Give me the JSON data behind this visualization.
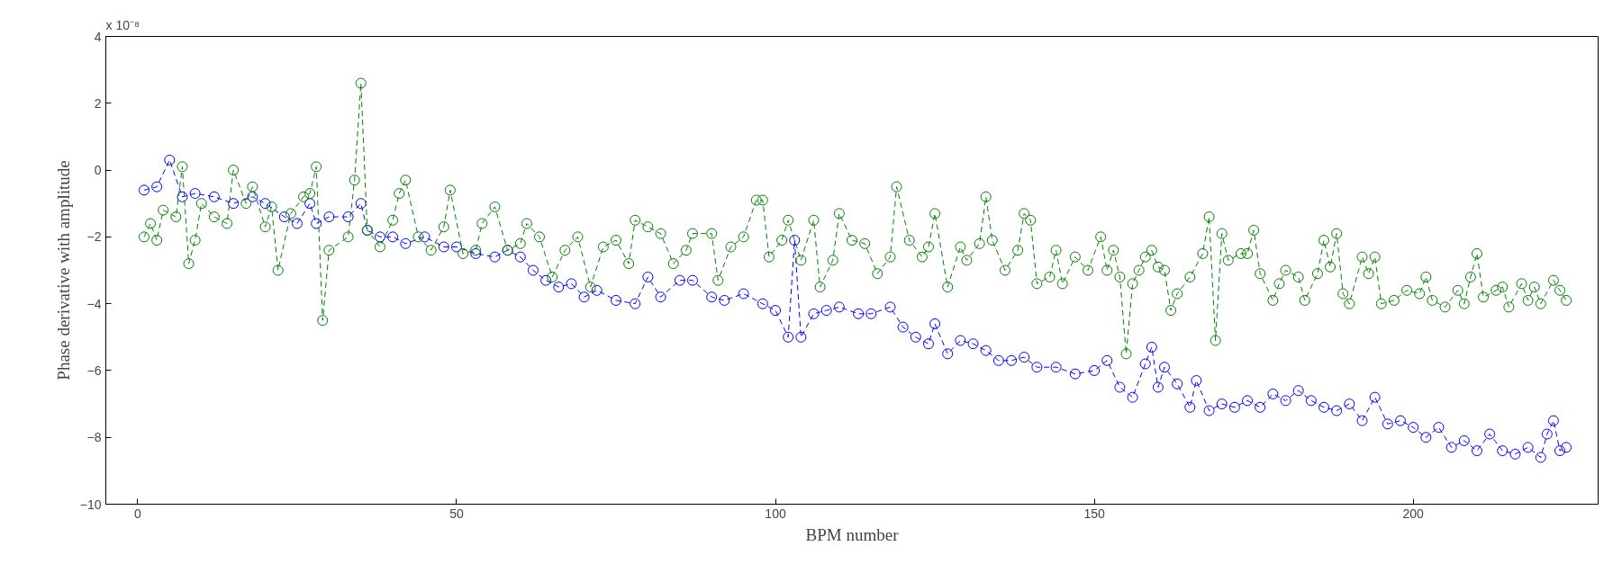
{
  "chart_data": {
    "type": "line",
    "xlabel": "BPM number",
    "ylabel": "Phase derivative with amplitude",
    "annotations": [
      "x 10⁻⁸"
    ],
    "xlim": [
      -5,
      229
    ],
    "xticks": [
      0,
      50,
      100,
      150,
      200
    ],
    "ylim": [
      -10,
      4
    ],
    "yticks": [
      -10,
      -8,
      -6,
      -4,
      -2,
      0,
      2,
      4
    ],
    "grid": false,
    "marker": "circle",
    "line_style": "dashed",
    "series": [
      {
        "color": "#0000ff",
        "x": [
          1,
          3,
          5,
          7,
          9,
          12,
          15,
          18,
          20,
          23,
          25,
          27,
          28,
          30,
          33,
          35,
          36,
          38,
          40,
          42,
          45,
          48,
          50,
          53,
          56,
          58,
          60,
          62,
          64,
          66,
          68,
          70,
          72,
          75,
          78,
          80,
          82,
          85,
          87,
          90,
          92,
          95,
          98,
          100,
          102,
          103,
          104,
          106,
          108,
          110,
          113,
          115,
          118,
          120,
          122,
          124,
          125,
          127,
          129,
          131,
          133,
          135,
          137,
          139,
          141,
          144,
          147,
          150,
          152,
          154,
          156,
          158,
          159,
          160,
          161,
          163,
          165,
          166,
          168,
          170,
          172,
          174,
          176,
          178,
          180,
          182,
          184,
          186,
          188,
          190,
          192,
          194,
          196,
          198,
          200,
          202,
          204,
          206,
          208,
          210,
          212,
          214,
          216,
          218,
          220,
          221,
          222,
          223,
          224
        ],
        "values": [
          -0.6,
          -0.5,
          0.3,
          -0.8,
          -0.7,
          -0.8,
          -1.0,
          -0.8,
          -1.0,
          -1.4,
          -1.6,
          -1.0,
          -1.6,
          -1.4,
          -1.4,
          -1.0,
          -1.8,
          -2.0,
          -2.0,
          -2.2,
          -2.0,
          -2.3,
          -2.3,
          -2.5,
          -2.6,
          -2.4,
          -2.6,
          -3.0,
          -3.3,
          -3.5,
          -3.4,
          -3.8,
          -3.6,
          -3.9,
          -4.0,
          -3.2,
          -3.8,
          -3.3,
          -3.3,
          -3.8,
          -3.9,
          -3.7,
          -4.0,
          -4.2,
          -5.0,
          -2.1,
          -5.0,
          -4.3,
          -4.2,
          -4.1,
          -4.3,
          -4.3,
          -4.1,
          -4.7,
          -5.0,
          -5.2,
          -4.6,
          -5.5,
          -5.1,
          -5.2,
          -5.4,
          -5.7,
          -5.7,
          -5.6,
          -5.9,
          -5.9,
          -6.1,
          -6.0,
          -5.7,
          -6.5,
          -6.8,
          -5.8,
          -5.3,
          -6.5,
          -5.9,
          -6.4,
          -7.1,
          -6.3,
          -7.2,
          -7.0,
          -7.1,
          -6.9,
          -7.1,
          -6.7,
          -6.9,
          -6.6,
          -6.9,
          -7.1,
          -7.2,
          -7.0,
          -7.5,
          -6.8,
          -7.6,
          -7.5,
          -7.7,
          -8.0,
          -7.7,
          -8.3,
          -8.1,
          -8.4,
          -7.9,
          -8.4,
          -8.5,
          -8.3,
          -8.6,
          -7.9,
          -7.5,
          -8.4,
          -8.3
        ]
      },
      {
        "color": "#008000",
        "x": [
          1,
          2,
          3,
          4,
          6,
          7,
          8,
          9,
          10,
          12,
          14,
          15,
          17,
          18,
          20,
          21,
          22,
          24,
          26,
          27,
          28,
          29,
          30,
          33,
          34,
          35,
          36,
          38,
          40,
          41,
          42,
          44,
          46,
          48,
          49,
          51,
          53,
          54,
          56,
          58,
          60,
          61,
          63,
          65,
          67,
          69,
          71,
          73,
          75,
          77,
          78,
          80,
          82,
          84,
          86,
          87,
          90,
          91,
          93,
          95,
          97,
          98,
          99,
          101,
          102,
          104,
          106,
          107,
          109,
          110,
          112,
          114,
          116,
          118,
          119,
          121,
          123,
          124,
          125,
          127,
          129,
          130,
          132,
          133,
          134,
          136,
          138,
          139,
          140,
          141,
          143,
          144,
          145,
          147,
          149,
          151,
          152,
          153,
          154,
          155,
          156,
          157,
          158,
          159,
          160,
          161,
          162,
          163,
          165,
          167,
          168,
          169,
          170,
          171,
          173,
          174,
          175,
          176,
          178,
          179,
          180,
          182,
          183,
          185,
          186,
          187,
          188,
          189,
          190,
          192,
          193,
          194,
          195,
          197,
          199,
          201,
          202,
          203,
          205,
          207,
          208,
          209,
          210,
          211,
          213,
          214,
          215,
          217,
          218,
          219,
          220,
          222,
          223,
          224
        ],
        "values": [
          -2.0,
          -1.6,
          -2.1,
          -1.2,
          -1.4,
          0.1,
          -2.8,
          -2.1,
          -1.0,
          -1.4,
          -1.6,
          0.0,
          -1.0,
          -0.5,
          -1.7,
          -1.1,
          -3.0,
          -1.3,
          -0.8,
          -0.7,
          0.1,
          -4.5,
          -2.4,
          -2.0,
          -0.3,
          2.6,
          -1.8,
          -2.3,
          -1.5,
          -0.7,
          -0.3,
          -2.0,
          -2.4,
          -1.7,
          -0.6,
          -2.5,
          -2.4,
          -1.6,
          -1.1,
          -2.4,
          -2.2,
          -1.6,
          -2.0,
          -3.2,
          -2.4,
          -2.0,
          -3.5,
          -2.3,
          -2.1,
          -2.8,
          -1.5,
          -1.7,
          -1.9,
          -2.8,
          -2.4,
          -1.9,
          -1.9,
          -3.3,
          -2.3,
          -2.0,
          -0.9,
          -0.9,
          -2.6,
          -2.1,
          -1.5,
          -2.7,
          -1.5,
          -3.5,
          -2.7,
          -1.3,
          -2.1,
          -2.2,
          -3.1,
          -2.6,
          -0.5,
          -2.1,
          -2.6,
          -2.3,
          -1.3,
          -3.5,
          -2.3,
          -2.7,
          -2.2,
          -0.8,
          -2.1,
          -3.0,
          -2.4,
          -1.3,
          -1.5,
          -3.4,
          -3.2,
          -2.4,
          -3.4,
          -2.6,
          -3.0,
          -2.0,
          -3.0,
          -2.4,
          -3.2,
          -5.5,
          -3.4,
          -3.0,
          -2.6,
          -2.4,
          -2.9,
          -3.0,
          -4.2,
          -3.7,
          -3.2,
          -2.5,
          -1.4,
          -5.1,
          -1.9,
          -2.7,
          -2.5,
          -2.5,
          -1.8,
          -3.1,
          -3.9,
          -3.4,
          -3.0,
          -3.2,
          -3.9,
          -3.1,
          -2.1,
          -2.9,
          -1.9,
          -3.7,
          -4.0,
          -2.6,
          -3.1,
          -2.6,
          -4.0,
          -3.9,
          -3.6,
          -3.7,
          -3.2,
          -3.9,
          -4.1,
          -3.6,
          -4.0,
          -3.2,
          -2.5,
          -3.8,
          -3.6,
          -3.5,
          -4.1,
          -3.4,
          -3.9,
          -3.5,
          -4.0,
          -3.3,
          -3.6,
          -3.9
        ]
      }
    ]
  }
}
